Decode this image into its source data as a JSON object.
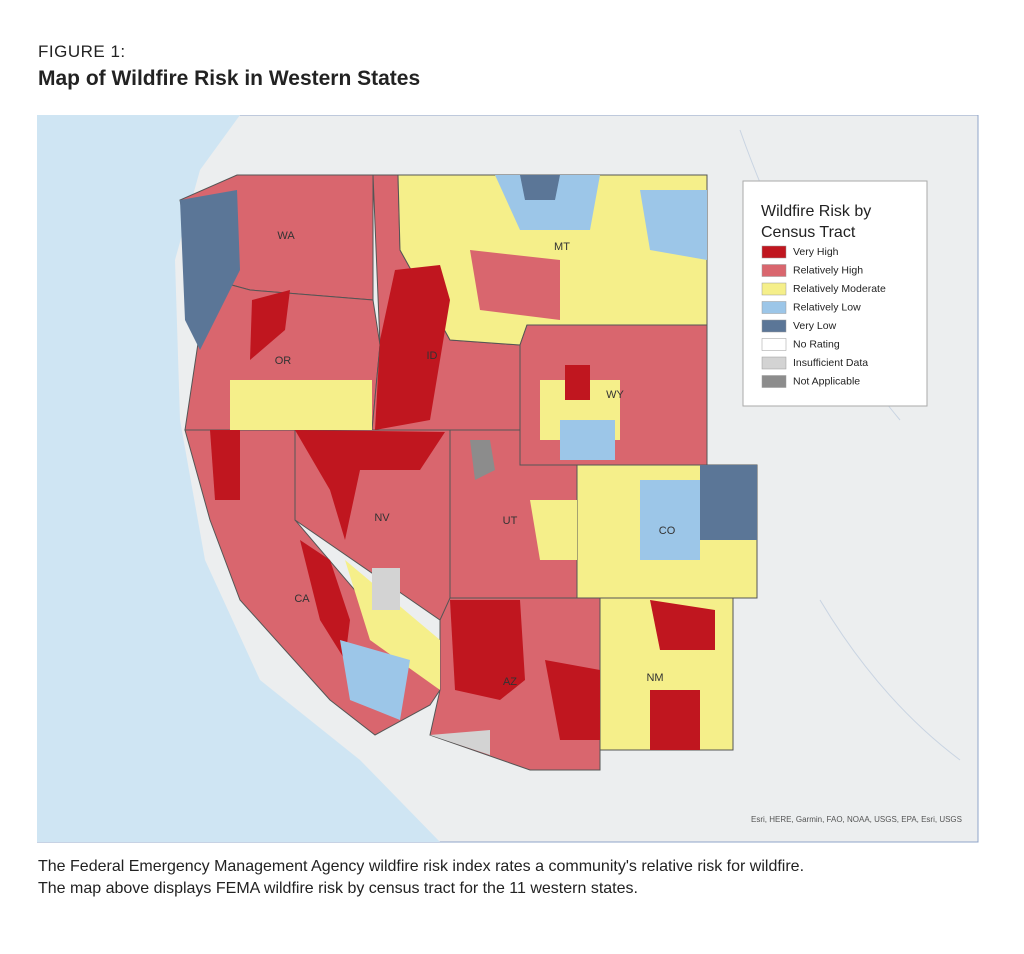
{
  "header": {
    "label": "FIGURE 1:",
    "title": "Map of Wildfire Risk in Western States"
  },
  "legend": {
    "title_lines": [
      "Wildfire Risk by",
      "Census Tract"
    ],
    "items": [
      {
        "label": "Very High",
        "color": "#c0161f"
      },
      {
        "label": "Relatively High",
        "color": "#d9666e"
      },
      {
        "label": "Relatively Moderate",
        "color": "#f5ef8a"
      },
      {
        "label": "Relatively Low",
        "color": "#9cc6e8"
      },
      {
        "label": "Very Low",
        "color": "#5b7697"
      },
      {
        "label": "No Rating",
        "color": "#ffffff"
      },
      {
        "label": "Insufficient Data",
        "color": "#d3d3d3"
      },
      {
        "label": "Not Applicable",
        "color": "#8c8c8c"
      }
    ]
  },
  "states": [
    "WA",
    "OR",
    "ID",
    "MT",
    "WY",
    "NV",
    "UT",
    "CO",
    "CA",
    "AZ",
    "NM"
  ],
  "attribution": "Esri, HERE, Garmin, FAO, NOAA, USGS, EPA, Esri, USGS",
  "caption": [
    "The Federal Emergency Management Agency wildfire risk index rates a community's relative risk for wildfire.",
    "The map above displays FEMA wildfire risk by census tract for the 11 western states."
  ]
}
